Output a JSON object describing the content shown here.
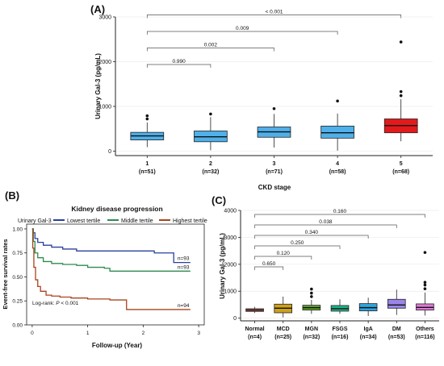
{
  "figure": {
    "panel_labels": [
      "(A)",
      "(B)",
      "(C)"
    ]
  },
  "chart_data": [
    {
      "type": "box",
      "panel": "(A)",
      "title": "",
      "xlabel": "CKD stage",
      "ylabel": "Urinary Gal-3 (pg/mL)",
      "ylim": [
        -100,
        3000
      ],
      "yticks": [
        0,
        1000,
        2000,
        3000
      ],
      "categories": [
        "1",
        "2",
        "3",
        "4",
        "5"
      ],
      "category_counts": [
        "(n=51)",
        "(n=32)",
        "(n=71)",
        "(n=58)",
        "(n=68)"
      ],
      "fill_colors": [
        "#4fb0ea",
        "#4fb0ea",
        "#4fb0ea",
        "#4fb0ea",
        "#e31a1c"
      ],
      "boxes": [
        {
          "whisker_low": 90,
          "q1": 250,
          "median": 340,
          "q3": 420,
          "whisker_high": 640,
          "outliers": [
            720,
            790
          ]
        },
        {
          "whisker_low": 20,
          "q1": 210,
          "median": 320,
          "q3": 450,
          "whisker_high": 760,
          "outliers": [
            830
          ]
        },
        {
          "whisker_low": 80,
          "q1": 310,
          "median": 430,
          "q3": 540,
          "whisker_high": 830,
          "outliers": [
            950
          ]
        },
        {
          "whisker_low": 10,
          "q1": 290,
          "median": 410,
          "q3": 560,
          "whisker_high": 840,
          "outliers": [
            1120
          ]
        },
        {
          "whisker_low": 220,
          "q1": 410,
          "median": 570,
          "q3": 720,
          "whisker_high": 1160,
          "outliers": [
            1240,
            1330,
            2440
          ]
        }
      ],
      "comparisons": [
        {
          "from": 0,
          "to": 1,
          "label": "0.990"
        },
        {
          "from": 0,
          "to": 2,
          "label": "0.002"
        },
        {
          "from": 0,
          "to": 3,
          "label": "0.009"
        },
        {
          "from": 0,
          "to": 4,
          "label": "< 0.001"
        }
      ]
    },
    {
      "type": "line",
      "panel": "(B)",
      "title": "Kidney disease progression",
      "xlabel": "Follow-up (Year)",
      "ylabel": "Event-free survival rates",
      "xlim": [
        -0.1,
        3.1
      ],
      "ylim": [
        0,
        1.05
      ],
      "xticks": [
        0,
        1,
        2,
        3
      ],
      "yticks": [
        0.0,
        0.25,
        0.5,
        0.75,
        1.0
      ],
      "ytick_labels": [
        "0.00",
        "0.25",
        "0.50",
        "0.75",
        "1.00"
      ],
      "legend_title": "Urinary Gal-3",
      "legend_position": "top",
      "annotation_prefix": "Log-rank: ",
      "annotation_italic": "P",
      "annotation_suffix": " < 0.001",
      "series": [
        {
          "name": "Lowest tertile",
          "color": "#2b3f9e",
          "end_label": "n=93",
          "x": [
            0,
            0.02,
            0.05,
            0.1,
            0.2,
            0.35,
            0.55,
            0.8,
            2.2,
            2.55,
            2.85
          ],
          "y": [
            1.0,
            0.96,
            0.9,
            0.86,
            0.83,
            0.81,
            0.79,
            0.77,
            0.75,
            0.65,
            0.65
          ]
        },
        {
          "name": "Middle tertile",
          "color": "#2e8b4e",
          "end_label": "n=93",
          "x": [
            0,
            0.02,
            0.05,
            0.1,
            0.2,
            0.35,
            0.55,
            0.8,
            1.0,
            1.3,
            1.4,
            2.85
          ],
          "y": [
            1.0,
            0.87,
            0.75,
            0.7,
            0.66,
            0.64,
            0.63,
            0.62,
            0.6,
            0.59,
            0.56,
            0.56
          ]
        },
        {
          "name": "Highest tertile",
          "color": "#a8431e",
          "end_label": "n=94",
          "x": [
            0,
            0.01,
            0.03,
            0.06,
            0.1,
            0.15,
            0.25,
            0.35,
            0.5,
            0.7,
            1.0,
            1.4,
            1.7,
            2.85
          ],
          "y": [
            1.0,
            0.8,
            0.6,
            0.47,
            0.4,
            0.35,
            0.31,
            0.3,
            0.29,
            0.28,
            0.27,
            0.26,
            0.16,
            0.16
          ]
        }
      ]
    },
    {
      "type": "box",
      "panel": "(C)",
      "title": "",
      "xlabel": "",
      "ylabel": "Urinary Gal-3 (pg/mL)",
      "ylim": [
        -100,
        4000
      ],
      "yticks": [
        0,
        1000,
        2000,
        3000,
        4000
      ],
      "categories": [
        "Normal",
        "MCD",
        "MGN",
        "FSGS",
        "IgA",
        "DM",
        "Others"
      ],
      "category_counts": [
        "(n=4)",
        "(n=25)",
        "(n=32)",
        "(n=16)",
        "(n=34)",
        "(n=53)",
        "(n=116)"
      ],
      "fill_colors": [
        "#f07d6c",
        "#cda11c",
        "#62a82c",
        "#1fb38a",
        "#2ea5de",
        "#9b85e8",
        "#e07ad6"
      ],
      "boxes": [
        {
          "whisker_low": 190,
          "q1": 250,
          "median": 300,
          "q3": 350,
          "whisker_high": 420,
          "outliers": []
        },
        {
          "whisker_low": 30,
          "q1": 200,
          "median": 370,
          "q3": 520,
          "whisker_high": 800,
          "outliers": []
        },
        {
          "whisker_low": 160,
          "q1": 300,
          "median": 390,
          "q3": 480,
          "whisker_high": 680,
          "outliers": [
            800,
            930,
            1080
          ]
        },
        {
          "whisker_low": 160,
          "q1": 260,
          "median": 350,
          "q3": 470,
          "whisker_high": 700,
          "outliers": []
        },
        {
          "whisker_low": 80,
          "q1": 270,
          "median": 390,
          "q3": 540,
          "whisker_high": 760,
          "outliers": []
        },
        {
          "whisker_low": 120,
          "q1": 370,
          "median": 490,
          "q3": 700,
          "whisker_high": 1060,
          "outliers": []
        },
        {
          "whisker_low": 100,
          "q1": 300,
          "median": 400,
          "q3": 530,
          "whisker_high": 950,
          "outliers": [
            1090,
            1230,
            1330,
            2440
          ]
        }
      ],
      "comparisons": [
        {
          "from": 0,
          "to": 1,
          "label": "0.650"
        },
        {
          "from": 0,
          "to": 2,
          "label": "0.120"
        },
        {
          "from": 0,
          "to": 3,
          "label": "0.250"
        },
        {
          "from": 0,
          "to": 4,
          "label": "0.340"
        },
        {
          "from": 0,
          "to": 5,
          "label": "0.038"
        },
        {
          "from": 0,
          "to": 6,
          "label": "0.160"
        }
      ]
    }
  ]
}
